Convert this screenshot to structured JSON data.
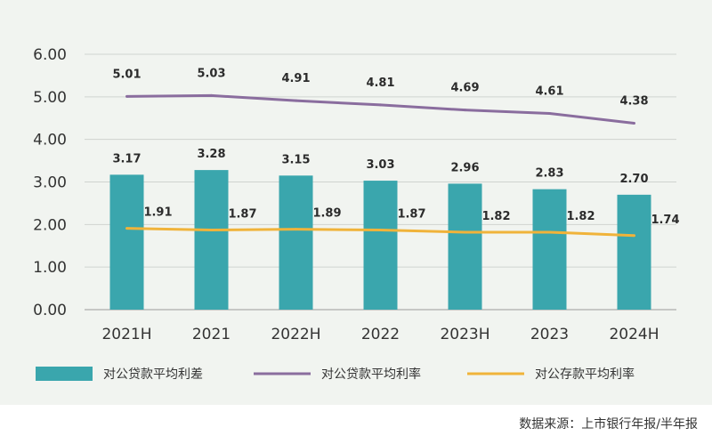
{
  "chart_data": {
    "type": "bar",
    "categories": [
      "2021H",
      "2021",
      "2022H",
      "2022",
      "2023H",
      "2023",
      "2024H"
    ],
    "ylim": [
      0,
      6
    ],
    "yticks": [
      "0.00",
      "1.00",
      "2.00",
      "3.00",
      "4.00",
      "5.00",
      "6.00"
    ],
    "grid": true,
    "legend_position": "bottom",
    "series": [
      {
        "name": "对公贷款平均利差",
        "kind": "bar",
        "values": [
          3.17,
          3.28,
          3.15,
          3.03,
          2.96,
          2.83,
          2.7
        ],
        "labels": [
          "3.17",
          "3.28",
          "3.15",
          "3.03",
          "2.96",
          "2.83",
          "2.70"
        ],
        "color": "#3aa6ad"
      },
      {
        "name": "对公贷款平均利率",
        "kind": "line",
        "values": [
          5.01,
          5.03,
          4.91,
          4.81,
          4.69,
          4.61,
          4.38
        ],
        "labels": [
          "5.01",
          "5.03",
          "4.91",
          "4.81",
          "4.69",
          "4.61",
          "4.38"
        ],
        "color": "#8a6d9e"
      },
      {
        "name": "对公存款平均利率",
        "kind": "line",
        "values": [
          1.91,
          1.87,
          1.89,
          1.87,
          1.82,
          1.82,
          1.74
        ],
        "labels": [
          "1.91",
          "1.87",
          "1.89",
          "1.87",
          "1.82",
          "1.82",
          "1.74"
        ],
        "color": "#f0b33a"
      }
    ],
    "source": "数据来源：上市银行年报/半年报"
  }
}
